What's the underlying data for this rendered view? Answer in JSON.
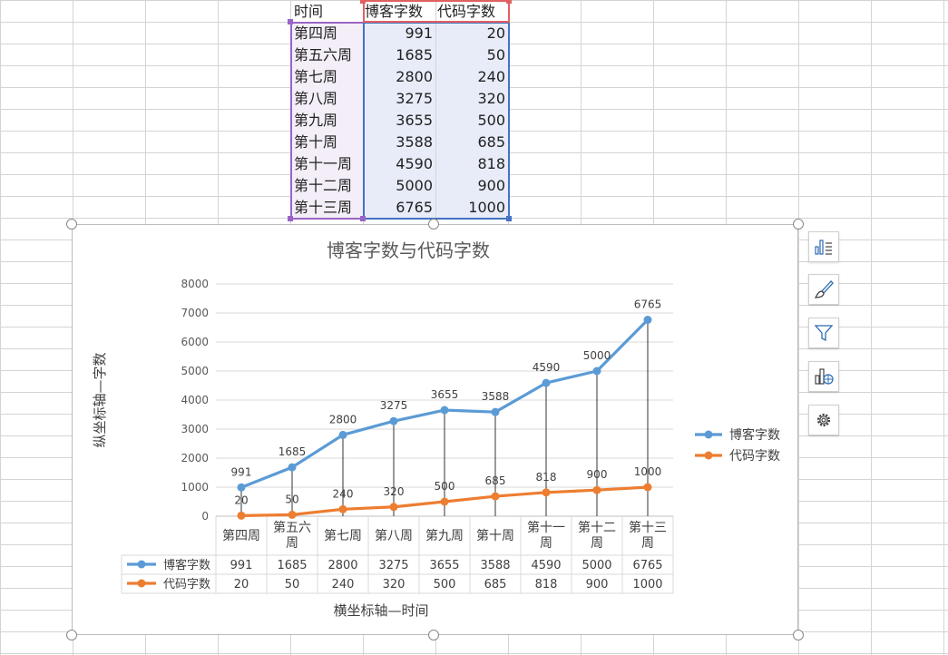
{
  "sheet": {
    "headers": [
      "时间",
      "博客字数",
      "代码字数"
    ],
    "rows": [
      [
        "第四周",
        "991",
        "20"
      ],
      [
        "第五六周",
        "1685",
        "50"
      ],
      [
        "第七周",
        "2800",
        "240"
      ],
      [
        "第八周",
        "3275",
        "320"
      ],
      [
        "第九周",
        "3655",
        "500"
      ],
      [
        "第十周",
        "3588",
        "685"
      ],
      [
        "第十一周",
        "4590",
        "818"
      ],
      [
        "第十二周",
        "5000",
        "900"
      ],
      [
        "第十三周",
        "6765",
        "1000"
      ]
    ]
  },
  "side_buttons": [
    "chart-elements-icon",
    "chart-style-icon",
    "chart-filter-icon",
    "chart-type-icon",
    "chart-settings-icon"
  ],
  "chart_data": {
    "type": "line",
    "title": "博客字数与代码字数",
    "xlabel": "横坐标轴—时间",
    "ylabel": "纵坐标轴—字数",
    "categories": [
      "第四周",
      "第五六周",
      "第七周",
      "第八周",
      "第九周",
      "第十周",
      "第十一周",
      "第十二周",
      "第十三周"
    ],
    "category_lines": [
      [
        "第四周"
      ],
      [
        "第五六",
        "周"
      ],
      [
        "第七周"
      ],
      [
        "第八周"
      ],
      [
        "第九周"
      ],
      [
        "第十周"
      ],
      [
        "第十一",
        "周"
      ],
      [
        "第十二",
        "周"
      ],
      [
        "第十三",
        "周"
      ]
    ],
    "series": [
      {
        "name": "博客字数",
        "color": "#5b9bd5",
        "values": [
          991,
          1685,
          2800,
          3275,
          3655,
          3588,
          4590,
          5000,
          6765
        ]
      },
      {
        "name": "代码字数",
        "color": "#ed7d31",
        "values": [
          20,
          50,
          240,
          320,
          500,
          685,
          818,
          900,
          1000
        ]
      }
    ],
    "ylim": [
      0,
      8000
    ],
    "yticks": [
      0,
      1000,
      2000,
      3000,
      4000,
      5000,
      6000,
      7000,
      8000
    ],
    "grid": true,
    "legend": "right",
    "data_table": true,
    "drop_lines": true
  }
}
